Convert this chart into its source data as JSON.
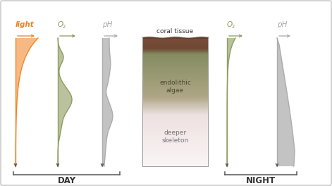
{
  "fig_width": 4.71,
  "fig_height": 2.64,
  "dpi": 100,
  "border_color": "#cccccc",
  "day_label": "DAY",
  "night_label": "NIGHT",
  "coral_tissue_label": "coral tissue",
  "endolithic_algae_label": "endolithic\nalgae",
  "deeper_skeleton_label": "deeper\nskeleton",
  "light_label": "light",
  "ph_label": "pH",
  "light_color": "#f08020",
  "o2_color": "#8a9a5b",
  "ph_color": "#aaaaaa",
  "arrow_color": "#555555",
  "label_color_light": "#f08020",
  "label_color_o2": "#8a9a5b",
  "label_color_ph": "#aaaaaa",
  "bracket_color": "#555555"
}
